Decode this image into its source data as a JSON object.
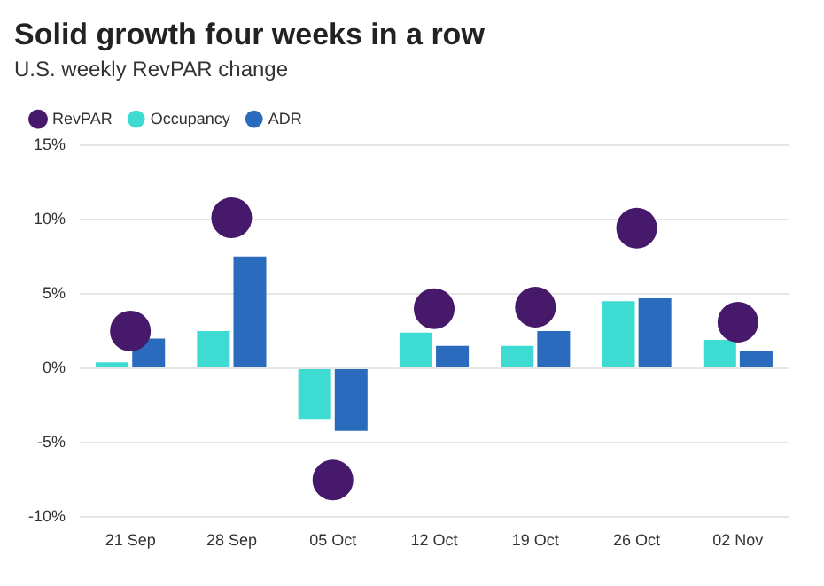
{
  "chart_data": {
    "type": "bar",
    "title": "Solid growth four weeks in a row",
    "subtitle": "U.S. weekly RevPAR change",
    "categories": [
      "21 Sep",
      "28 Sep",
      "05 Oct",
      "12 Oct",
      "19 Oct",
      "26 Oct",
      "02 Nov"
    ],
    "series": [
      {
        "name": "RevPAR",
        "type": "scatter",
        "x": [
          "21 Sep",
          "28 Sep",
          "05 Oct",
          "12 Oct",
          "19 Oct",
          "26 Oct",
          "02 Nov"
        ],
        "color": "#46196b",
        "marker": "circle",
        "values": [
          2.5,
          10.1,
          -7.5,
          4.0,
          4.1,
          9.4,
          3.1
        ]
      },
      {
        "name": "Occupancy",
        "color": "#3ddbd1",
        "values": [
          0.4,
          2.5,
          -3.4,
          2.4,
          1.5,
          4.5,
          1.9
        ]
      },
      {
        "name": "ADR",
        "color": "#2a6bbd",
        "values": [
          2.0,
          7.5,
          -4.2,
          1.5,
          2.5,
          4.7,
          1.2
        ]
      }
    ],
    "ylim": [
      -10,
      15
    ],
    "yticks": [
      {
        "value": -10,
        "label": "-10%"
      },
      {
        "value": -5,
        "label": "-5%"
      },
      {
        "value": 0,
        "label": "0%"
      },
      {
        "value": 5,
        "label": "5%"
      },
      {
        "value": 10,
        "label": "10%"
      },
      {
        "value": 15,
        "label": "15%"
      }
    ],
    "grid": "y",
    "legend": "top left"
  }
}
